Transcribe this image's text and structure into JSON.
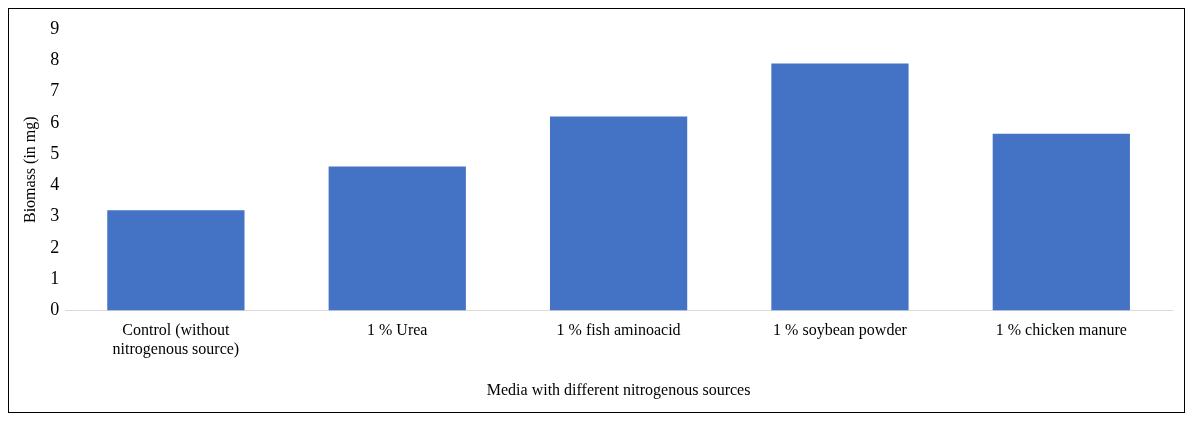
{
  "chart_data": {
    "type": "bar",
    "xlabel": "Media with different nitrogenous sources",
    "ylabel": "Biomass (in mg)",
    "categories": [
      "Control (without nitrogenous source)",
      "1 % Urea",
      "1 % fish aminoacid",
      "1 % soybean powder",
      "1 % chicken manure"
    ],
    "values": [
      3.2,
      4.6,
      6.2,
      7.9,
      5.65
    ],
    "color": "#4472c4",
    "ylim": [
      0,
      9
    ],
    "yticks": [
      0,
      1,
      2,
      3,
      4,
      5,
      6,
      7,
      8,
      9
    ],
    "grid": false,
    "legend": false
  }
}
